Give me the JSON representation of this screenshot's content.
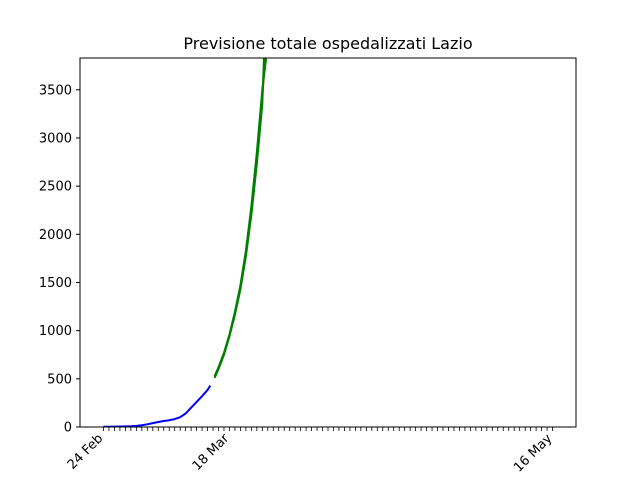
{
  "chart_data": {
    "type": "line",
    "title": "Previsione totale ospedalizzati Lazio",
    "xlabel": "",
    "ylabel": "",
    "x_axis": {
      "start_day": 0,
      "end_day": 82,
      "ticks": [
        {
          "day": 0,
          "label": "24 Feb"
        },
        {
          "day": 23,
          "label": "18 Mar"
        },
        {
          "day": 82,
          "label": "16 May"
        }
      ]
    },
    "y_axis": {
      "range": [
        0,
        3830
      ],
      "ticks": [
        0,
        500,
        1000,
        1500,
        2000,
        2500,
        3000,
        3500
      ]
    },
    "grid": false,
    "series": [
      {
        "color": "#0000ff",
        "points": [
          [
            0,
            2
          ],
          [
            1,
            3
          ],
          [
            2,
            4
          ],
          [
            3,
            5
          ],
          [
            4,
            6
          ],
          [
            5,
            8
          ],
          [
            6,
            12
          ],
          [
            7,
            18
          ],
          [
            8,
            28
          ],
          [
            9,
            40
          ],
          [
            10,
            52
          ],
          [
            11,
            62
          ],
          [
            12,
            70
          ],
          [
            13,
            82
          ],
          [
            14,
            102
          ],
          [
            15,
            140
          ],
          [
            16,
            200
          ],
          [
            17,
            260
          ],
          [
            18,
            320
          ],
          [
            19,
            385
          ],
          [
            19.5,
            430
          ]
        ]
      },
      {
        "color": "#ff0000",
        "points": [
          [
            20.3,
            520
          ],
          [
            21,
            610
          ],
          [
            22,
            760
          ],
          [
            23,
            950
          ],
          [
            24,
            1180
          ],
          [
            25,
            1450
          ],
          [
            26,
            1800
          ],
          [
            27,
            2250
          ],
          [
            28,
            2800
          ],
          [
            29,
            3430
          ],
          [
            29.5,
            3830
          ]
        ]
      },
      {
        "color": "#008000",
        "points": [
          [
            20.3,
            510
          ],
          [
            21,
            600
          ],
          [
            22,
            750
          ],
          [
            23,
            940
          ],
          [
            24,
            1165
          ],
          [
            25,
            1430
          ],
          [
            26,
            1770
          ],
          [
            27,
            2200
          ],
          [
            28,
            2730
          ],
          [
            29,
            3350
          ],
          [
            29.3,
            3830
          ]
        ]
      },
      {
        "color": "#008000",
        "points": [
          [
            20.3,
            530
          ],
          [
            21,
            620
          ],
          [
            22,
            770
          ],
          [
            23,
            960
          ],
          [
            24,
            1195
          ],
          [
            25,
            1470
          ],
          [
            26,
            1830
          ],
          [
            27,
            2290
          ],
          [
            28,
            2850
          ],
          [
            29,
            3500
          ],
          [
            29.7,
            3830
          ]
        ]
      }
    ]
  }
}
